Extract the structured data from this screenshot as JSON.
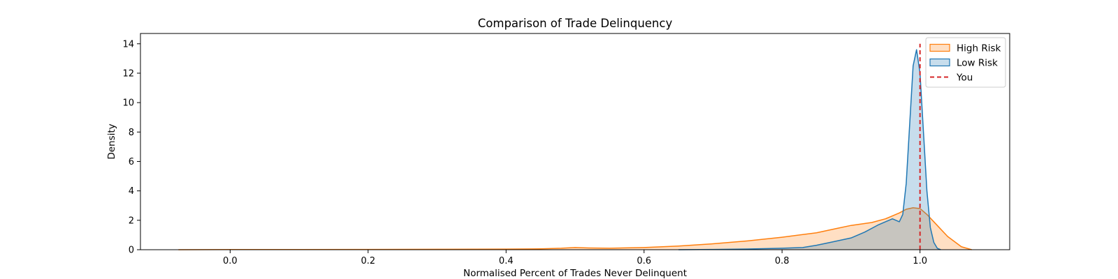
{
  "chart_data": {
    "type": "area",
    "title": "Comparison of Trade Delinquency",
    "xlabel": "Normalised Percent of Trades Never Delinquent",
    "ylabel": "Density",
    "xlim": [
      -0.13,
      1.13
    ],
    "ylim": [
      0,
      14.7
    ],
    "xticks": [
      0.0,
      0.2,
      0.4,
      0.6,
      0.8,
      1.0
    ],
    "xtick_labels": [
      "0.0",
      "0.2",
      "0.4",
      "0.6",
      "0.8",
      "1.0"
    ],
    "yticks": [
      0,
      2,
      4,
      6,
      8,
      10,
      12,
      14
    ],
    "ytick_labels": [
      "0",
      "2",
      "4",
      "6",
      "8",
      "10",
      "12",
      "14"
    ],
    "grid": false,
    "legend_position": "top-right",
    "series": [
      {
        "name": "High Risk",
        "kind": "kde",
        "line_color": "#ff7f0e",
        "fill_color": "#ff7f0e",
        "fill_opacity": 0.25,
        "x": [
          -0.075,
          0.0,
          0.1,
          0.2,
          0.3,
          0.4,
          0.45,
          0.48,
          0.5,
          0.52,
          0.55,
          0.6,
          0.65,
          0.7,
          0.75,
          0.8,
          0.85,
          0.88,
          0.9,
          0.93,
          0.95,
          0.97,
          0.98,
          0.99,
          1.0,
          1.01,
          1.02,
          1.04,
          1.06,
          1.075
        ],
        "y": [
          0.0,
          0.01,
          0.01,
          0.02,
          0.03,
          0.04,
          0.06,
          0.1,
          0.15,
          0.12,
          0.1,
          0.15,
          0.25,
          0.4,
          0.6,
          0.85,
          1.15,
          1.45,
          1.65,
          1.85,
          2.1,
          2.5,
          2.75,
          2.85,
          2.8,
          2.4,
          1.9,
          0.9,
          0.2,
          0.0
        ]
      },
      {
        "name": "Low Risk",
        "kind": "kde",
        "line_color": "#1f77b4",
        "fill_color": "#1f77b4",
        "fill_opacity": 0.25,
        "x": [
          0.65,
          0.7,
          0.75,
          0.8,
          0.83,
          0.85,
          0.87,
          0.9,
          0.92,
          0.94,
          0.96,
          0.97,
          0.975,
          0.98,
          0.985,
          0.99,
          0.995,
          1.0,
          1.005,
          1.01,
          1.015,
          1.02,
          1.025,
          1.03
        ],
        "y": [
          0.0,
          0.02,
          0.05,
          0.1,
          0.15,
          0.3,
          0.5,
          0.8,
          1.2,
          1.7,
          2.1,
          1.9,
          2.4,
          4.5,
          8.5,
          12.5,
          13.6,
          12.0,
          8.0,
          4.0,
          1.5,
          0.5,
          0.1,
          0.0
        ]
      }
    ],
    "reference_lines": [
      {
        "name": "You",
        "x": 1.0,
        "color": "#d62728",
        "style": "dashed",
        "y_top": 14.0
      }
    ]
  }
}
